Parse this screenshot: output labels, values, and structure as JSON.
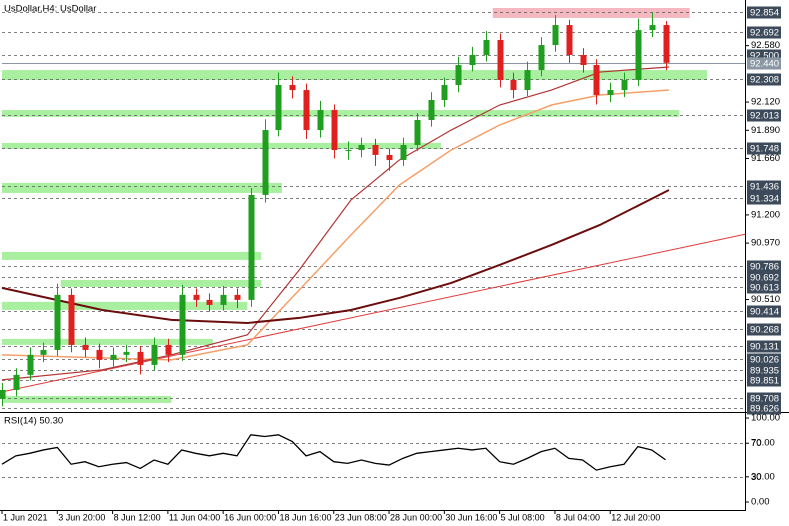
{
  "chart_data": [
    {
      "type": "candlestick",
      "title": "UsDollar,H4: UsDollar",
      "xlim": [
        0,
        215
      ],
      "ylim": [
        89.593,
        92.936
      ],
      "xticks": [
        {
          "value": 0,
          "label": "1 Jun 2021"
        },
        {
          "value": 16,
          "label": "3 Jun 20:00"
        },
        {
          "value": 32,
          "label": "8 Jun 12:00"
        },
        {
          "value": 48,
          "label": "11 Jun 04:00"
        },
        {
          "value": 64,
          "label": "16 Jun 00:00"
        },
        {
          "value": 80,
          "label": "18 Jun 16:00"
        },
        {
          "value": 96,
          "label": "23 Jun 08:00"
        },
        {
          "value": 112,
          "label": "28 Jun 00:00"
        },
        {
          "value": 128,
          "label": "30 Jun 16:00"
        },
        {
          "value": 144,
          "label": "5 Jul 08:00"
        },
        {
          "value": 160,
          "label": "8 Jul 04:00"
        },
        {
          "value": 176,
          "label": "12 Jul 20:00"
        }
      ],
      "yticks": [
        {
          "value": 92.58,
          "label": "92.580"
        },
        {
          "value": 92.12,
          "label": "92.120"
        },
        {
          "value": 91.89,
          "label": "91.890"
        },
        {
          "value": 91.66,
          "label": "91.660"
        },
        {
          "value": 91.2,
          "label": "91.200"
        },
        {
          "value": 90.97,
          "label": "90.970"
        },
        {
          "value": 90.51,
          "label": "90.510"
        }
      ],
      "levels": [
        92.854,
        92.692,
        {
          "value": 92.5,
          "label": "92.500"
        },
        92.308,
        92.013,
        91.748,
        91.436,
        91.334,
        90.786,
        90.692,
        90.613,
        90.414,
        90.268,
        90.131,
        90.026,
        89.935,
        89.851,
        89.708,
        89.626
      ],
      "level_color": "#3c4a5a",
      "last_price": {
        "value": 92.44,
        "label": "92.440"
      },
      "last_price_color": "#8a96a3",
      "zones": [
        {
          "low": 92.3,
          "high": 92.381,
          "x0": 0,
          "x1": 204,
          "color": "#a8f0a0"
        },
        {
          "low": 91.999,
          "high": 92.055,
          "x0": 0,
          "x1": 196,
          "color": "#a8f0a0"
        },
        {
          "low": 91.738,
          "high": 91.787,
          "x0": 0,
          "x1": 127,
          "color": "#a8f0a0"
        },
        {
          "low": 91.379,
          "high": 91.461,
          "x0": 0,
          "x1": 81,
          "color": "#a8f0a0"
        },
        {
          "low": 90.833,
          "high": 90.898,
          "x0": 0,
          "x1": 75,
          "color": "#a8f0a0"
        },
        {
          "low": 90.613,
          "high": 90.67,
          "x0": 17,
          "x1": 75,
          "color": "#a8f0a0"
        },
        {
          "low": 90.425,
          "high": 90.491,
          "x0": 0,
          "x1": 71,
          "color": "#a8f0a0"
        },
        {
          "low": 90.14,
          "high": 90.189,
          "x0": 0,
          "x1": 61,
          "color": "#a8f0a0"
        },
        {
          "low": 89.667,
          "high": 89.724,
          "x0": 0,
          "x1": 49,
          "color": "#a8f0a0"
        },
        {
          "low": 92.806,
          "high": 92.887,
          "x0": 142,
          "x1": 199,
          "color": "#f5b8c0"
        }
      ],
      "up_color": "#1f9e1f",
      "down_color": "#e0201f",
      "x": [
        0,
        4,
        8,
        12,
        16,
        20,
        24,
        28,
        32,
        36,
        40,
        44,
        48,
        52,
        56,
        60,
        64,
        68,
        72,
        76,
        80,
        84,
        88,
        92,
        96,
        100,
        104,
        108,
        112,
        116,
        120,
        124,
        128,
        132,
        136,
        140,
        144,
        148,
        152,
        156,
        160,
        164,
        168,
        172,
        176,
        180,
        184,
        188,
        192
      ],
      "open": [
        89.7,
        89.773,
        89.896,
        90.059,
        90.099,
        90.548,
        90.14,
        90.099,
        90.018,
        90.059,
        90.083,
        89.977,
        90.14,
        90.059,
        90.548,
        90.507,
        90.466,
        90.548,
        90.507,
        91.363,
        91.892,
        92.259,
        92.218,
        91.892,
        92.055,
        91.729,
        91.729,
        91.77,
        91.689,
        91.648,
        91.77,
        91.974,
        92.137,
        92.259,
        92.422,
        92.504,
        92.626,
        92.3,
        92.218,
        92.381,
        92.585,
        92.748,
        92.504,
        92.422,
        92.178,
        92.218,
        92.3,
        92.707,
        92.748
      ],
      "high": [
        89.83,
        89.95,
        90.12,
        90.16,
        90.64,
        90.6,
        90.2,
        90.15,
        90.12,
        90.14,
        90.13,
        90.2,
        90.19,
        90.63,
        90.6,
        90.56,
        90.62,
        90.6,
        91.42,
        91.98,
        92.36,
        92.33,
        92.27,
        92.13,
        92.1,
        91.8,
        91.83,
        91.82,
        91.74,
        91.83,
        92.03,
        92.2,
        92.32,
        92.49,
        92.57,
        92.7,
        92.68,
        92.36,
        92.45,
        92.65,
        92.83,
        92.79,
        92.56,
        92.47,
        92.28,
        92.36,
        92.8,
        92.85,
        92.78
      ],
      "low": [
        89.64,
        89.72,
        89.85,
        90.0,
        90.05,
        90.08,
        90.04,
        89.95,
        89.96,
        90.0,
        89.9,
        89.93,
        90.0,
        90.01,
        90.45,
        90.41,
        90.42,
        90.44,
        90.45,
        91.3,
        91.84,
        92.15,
        91.82,
        91.83,
        91.66,
        91.65,
        91.67,
        91.6,
        91.56,
        91.6,
        91.72,
        91.92,
        92.08,
        92.2,
        92.37,
        92.45,
        92.24,
        92.15,
        92.17,
        92.33,
        92.53,
        92.44,
        92.36,
        92.1,
        92.12,
        92.16,
        92.25,
        92.65,
        92.38
      ],
      "close": [
        89.773,
        89.896,
        90.059,
        90.099,
        90.548,
        90.14,
        90.099,
        90.018,
        90.059,
        90.083,
        89.977,
        90.14,
        90.059,
        90.548,
        90.507,
        90.466,
        90.548,
        90.507,
        91.363,
        91.892,
        92.259,
        92.218,
        91.892,
        92.055,
        91.729,
        91.729,
        91.77,
        91.689,
        91.648,
        91.77,
        91.974,
        92.137,
        92.259,
        92.422,
        92.504,
        92.626,
        92.3,
        92.218,
        92.381,
        92.585,
        92.748,
        92.504,
        92.422,
        92.178,
        92.218,
        92.3,
        92.707,
        92.748,
        92.44
      ],
      "series": [
        {
          "color": "#e23a3a",
          "line_width": 1,
          "x": [
            0,
            215
          ],
          "values": [
            89.757,
            91.042
          ]
        },
        {
          "color": "#f4a06a",
          "line_width": 1.5,
          "x": [
            0,
            29,
            49,
            71,
            86,
            101,
            115,
            130,
            144,
            159,
            173,
            193
          ],
          "values": [
            90.059,
            90.034,
            90.018,
            90.14,
            90.588,
            91.037,
            91.444,
            91.729,
            91.933,
            92.096,
            92.178,
            92.218
          ]
        },
        {
          "color": "#b03434",
          "line_width": 1.2,
          "x": [
            0,
            29,
            49,
            71,
            86,
            101,
            115,
            130,
            144,
            159,
            173,
            193
          ],
          "values": [
            89.855,
            89.937,
            90.059,
            90.222,
            90.751,
            91.322,
            91.648,
            91.892,
            92.096,
            92.218,
            92.365,
            92.406
          ]
        },
        {
          "color": "#6b0d0d",
          "line_width": 2,
          "x": [
            0,
            29,
            49,
            71,
            86,
            101,
            115,
            130,
            144,
            159,
            173,
            193
          ],
          "values": [
            90.605,
            90.425,
            90.344,
            90.319,
            90.36,
            90.425,
            90.523,
            90.645,
            90.792,
            90.955,
            91.118,
            91.403
          ]
        }
      ]
    },
    {
      "type": "line",
      "title": "RSI(14) 50.30",
      "xlim": [
        0,
        215
      ],
      "ylim": [
        -9.5,
        104.8
      ],
      "yticks": [
        {
          "value": 100,
          "label": "100.00"
        },
        {
          "value": 70,
          "label": "70.00"
        },
        {
          "value": 30,
          "label": "30.00"
        },
        {
          "value": 0,
          "label": "0.00"
        }
      ],
      "levels": [
        70,
        30
      ],
      "series": [
        {
          "color": "#000000",
          "line_width": 1.3,
          "x": [
            0,
            4,
            8,
            12,
            16,
            20,
            24,
            28,
            32,
            36,
            40,
            44,
            48,
            52,
            56,
            60,
            64,
            68,
            72,
            76,
            80,
            84,
            88,
            92,
            96,
            100,
            104,
            108,
            112,
            116,
            120,
            124,
            128,
            132,
            136,
            140,
            144,
            148,
            152,
            156,
            160,
            164,
            168,
            172,
            176,
            180,
            184,
            188,
            192
          ],
          "values": [
            45,
            55,
            58,
            62,
            65,
            45,
            48,
            42,
            45,
            47,
            40,
            50,
            45,
            62,
            58,
            55,
            58,
            55,
            80,
            78,
            80,
            72,
            55,
            60,
            48,
            46,
            50,
            46,
            44,
            52,
            58,
            60,
            62,
            64,
            62,
            64,
            48,
            45,
            52,
            60,
            64,
            52,
            50,
            38,
            42,
            45,
            66,
            62,
            50.3
          ]
        }
      ]
    }
  ]
}
